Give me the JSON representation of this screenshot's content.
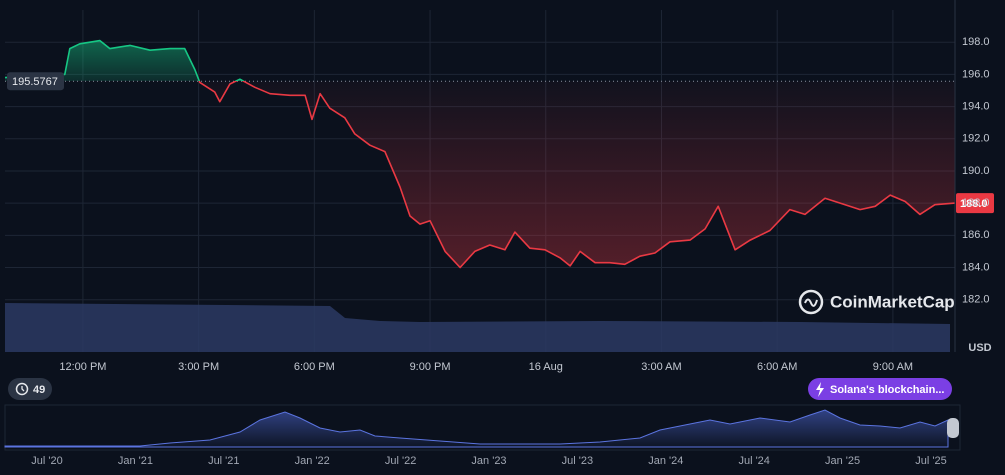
{
  "chart_data": {
    "type": "line",
    "x": [
      9.98,
      11.53,
      11.66,
      11.92,
      12.44,
      12.7,
      13.22,
      13.74,
      14.26,
      14.64,
      14.9,
      15.03,
      15.42,
      15.55,
      15.81,
      16.07,
      16.46,
      16.85,
      17.37,
      17.76,
      17.94,
      18.15,
      18.4,
      18.79,
      19.05,
      19.44,
      19.83,
      20.22,
      20.48,
      20.74,
      21.0,
      21.39,
      21.78,
      22.16,
      22.55,
      22.94,
      23.2,
      23.59,
      23.98,
      24.37,
      24.63,
      24.89,
      25.28,
      25.66,
      26.05,
      26.44,
      26.83,
      27.22,
      27.74,
      28.13,
      28.47,
      28.65,
      28.91,
      29.3,
      29.81,
      30.33,
      30.72,
      31.24,
      31.63,
      32.15,
      32.54,
      32.93,
      33.32,
      33.7,
      34.09,
      34.61
    ],
    "values": [
      195.8,
      196.0,
      197.6,
      197.9,
      198.1,
      197.6,
      197.8,
      197.5,
      197.6,
      197.6,
      196.3,
      195.5,
      194.9,
      194.3,
      195.4,
      195.7,
      195.2,
      194.8,
      194.7,
      194.7,
      193.2,
      194.8,
      193.9,
      193.3,
      192.3,
      191.6,
      191.2,
      189.0,
      187.2,
      186.7,
      186.9,
      185.0,
      184.0,
      185.0,
      185.4,
      185.1,
      186.2,
      185.2,
      185.1,
      184.6,
      184.1,
      185.0,
      184.3,
      184.3,
      184.2,
      184.7,
      184.9,
      185.6,
      185.7,
      186.4,
      187.8,
      186.7,
      185.1,
      185.7,
      186.3,
      187.6,
      187.3,
      188.3,
      188.0,
      187.6,
      187.8,
      188.5,
      188.1,
      187.3,
      187.9,
      188.0
    ],
    "color_up": "#16c784",
    "color_down": "#ea3943",
    "baseline": 195.5767,
    "current_price": {
      "value": 188.0,
      "label": "188.0"
    },
    "xlim": [
      9.98,
      34.61
    ],
    "ylim": [
      178.75,
      200
    ],
    "xticks": [
      {
        "value": 12,
        "label": "12:00 PM"
      },
      {
        "value": 15,
        "label": "3:00 PM"
      },
      {
        "value": 18,
        "label": "6:00 PM"
      },
      {
        "value": 21,
        "label": "9:00 PM"
      },
      {
        "value": 24,
        "label": "16 Aug"
      },
      {
        "value": 27,
        "label": "3:00 AM"
      },
      {
        "value": 30,
        "label": "6:00 AM"
      },
      {
        "value": 33,
        "label": "9:00 AM"
      }
    ],
    "yticks": [
      {
        "value": 182,
        "label": "182.0"
      },
      {
        "value": 184,
        "label": "184.0"
      },
      {
        "value": 186,
        "label": "186.0"
      },
      {
        "value": 188,
        "label": "188.0"
      },
      {
        "value": 190,
        "label": "190.0"
      },
      {
        "value": 192,
        "label": "192.0"
      },
      {
        "value": 194,
        "label": "194.0"
      },
      {
        "value": 196,
        "label": "196.0"
      },
      {
        "value": 198,
        "label": "198.0"
      }
    ],
    "y_axis_unit": "USD",
    "grid": true,
    "watermark": "CoinMarketCap",
    "events_count": "49",
    "news_badge": "Solana's blockchain...",
    "navigator_labels": [
      "Jul '20",
      "Jan '21",
      "Jul '21",
      "Jan '22",
      "Jul '22",
      "Jan '23",
      "Jul '23",
      "Jan '24",
      "Jul '24",
      "Jan '25",
      "Jul '25"
    ]
  }
}
